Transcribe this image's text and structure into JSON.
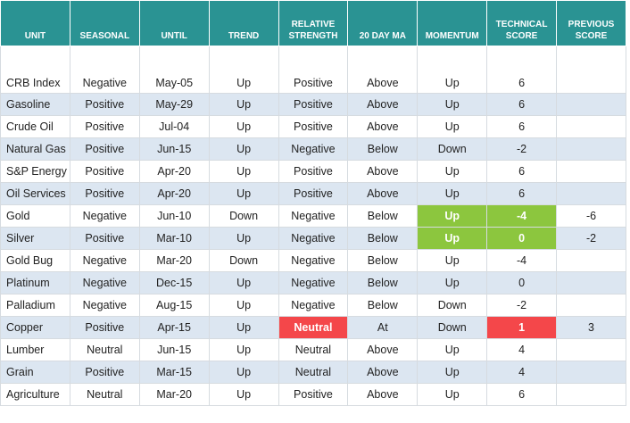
{
  "table": {
    "header": [
      "UNIT",
      "SEASONAL",
      "UNTIL",
      "TREND",
      "RELATIVE STRENGTH",
      "20 DAY MA",
      "MOMENTUM",
      "TECHNICAL SCORE",
      "PREVIOUS SCORE"
    ],
    "rows": [
      [
        "CRB Index",
        "Negative",
        "May-05",
        "Up",
        "Positive",
        "Above",
        "Up",
        "6",
        null
      ],
      [
        "Gasoline",
        "Positive",
        "May-29",
        "Up",
        "Positive",
        "Above",
        "Up",
        "6",
        null
      ],
      [
        "Crude Oil",
        "Positive",
        "Jul-04",
        "Up",
        "Positive",
        "Above",
        "Up",
        "6",
        null
      ],
      [
        "Natural Gas",
        "Positive",
        "Jun-15",
        "Up",
        "Negative",
        "Below",
        "Down",
        "-2",
        null
      ],
      [
        "S&P Energy",
        "Positive",
        "Apr-20",
        "Up",
        "Positive",
        "Above",
        "Up",
        "6",
        null
      ],
      [
        "Oil Services",
        "Positive",
        "Apr-20",
        "Up",
        "Positive",
        "Above",
        "Up",
        "6",
        null
      ],
      [
        "Gold",
        "Negative",
        "Jun-10",
        "Down",
        "Negative",
        "Below",
        "Up",
        "-4",
        "-6"
      ],
      [
        "Silver",
        "Positive",
        "Mar-10",
        "Up",
        "Negative",
        "Below",
        "Up",
        "0",
        "-2"
      ],
      [
        "Gold Bug",
        "Negative",
        "Mar-20",
        "Down",
        "Negative",
        "Below",
        "Up",
        "-4",
        null
      ],
      [
        "Platinum",
        "Negative",
        "Dec-15",
        "Up",
        "Negative",
        "Below",
        "Up",
        "0",
        null
      ],
      [
        "Palladium",
        "Negative",
        "Aug-15",
        "Up",
        "Negative",
        "Below",
        "Down",
        "-2",
        null
      ],
      [
        "Copper",
        "Positive",
        "Apr-15",
        "Up",
        "Neutral",
        "At",
        "Down",
        "1",
        "3"
      ],
      [
        "Lumber",
        "Neutral",
        "Jun-15",
        "Up",
        "Neutral",
        "Above",
        "Up",
        "4",
        null
      ],
      [
        "Grain",
        "Positive",
        "Mar-15",
        "Up",
        "Neutral",
        "Above",
        "Up",
        "4",
        null
      ],
      [
        "Agriculture",
        "Neutral",
        "Mar-20",
        "Up",
        "Positive",
        "Above",
        "Up",
        "6",
        null
      ]
    ]
  }
}
